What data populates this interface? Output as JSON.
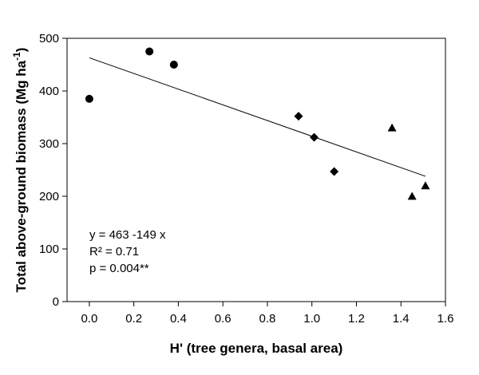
{
  "chart_data": {
    "type": "scatter",
    "title": "",
    "xlabel": "H' (tree genera, basal area)",
    "ylabel_main": "Total above-ground biomass (Mg ha",
    "ylabel_sup": "-1",
    "ylabel_close": ")",
    "xlim": [
      -0.1,
      1.6
    ],
    "ylim": [
      0,
      500
    ],
    "xticks": [
      "0.0",
      "0.2",
      "0.4",
      "0.6",
      "0.8",
      "1.0",
      "1.2",
      "1.4",
      "1.6"
    ],
    "yticks": [
      "0",
      "100",
      "200",
      "300",
      "400",
      "500"
    ],
    "grid": false,
    "series": [
      {
        "name": "circles",
        "marker": "circle",
        "x": [
          0.0,
          0.27,
          0.38
        ],
        "y": [
          385,
          475,
          450
        ]
      },
      {
        "name": "diamonds",
        "marker": "diamond",
        "x": [
          0.94,
          1.01,
          1.1
        ],
        "y": [
          352,
          312,
          247
        ]
      },
      {
        "name": "triangles",
        "marker": "triangle",
        "x": [
          1.36,
          1.45,
          1.51
        ],
        "y": [
          330,
          200,
          220
        ]
      }
    ],
    "regression": {
      "intercept": 463,
      "slope": -149,
      "x_range": [
        0.0,
        1.51
      ]
    },
    "annotations": [
      "y = 463 -149 x",
      "R² = 0.71",
      "p = 0.004**"
    ]
  }
}
